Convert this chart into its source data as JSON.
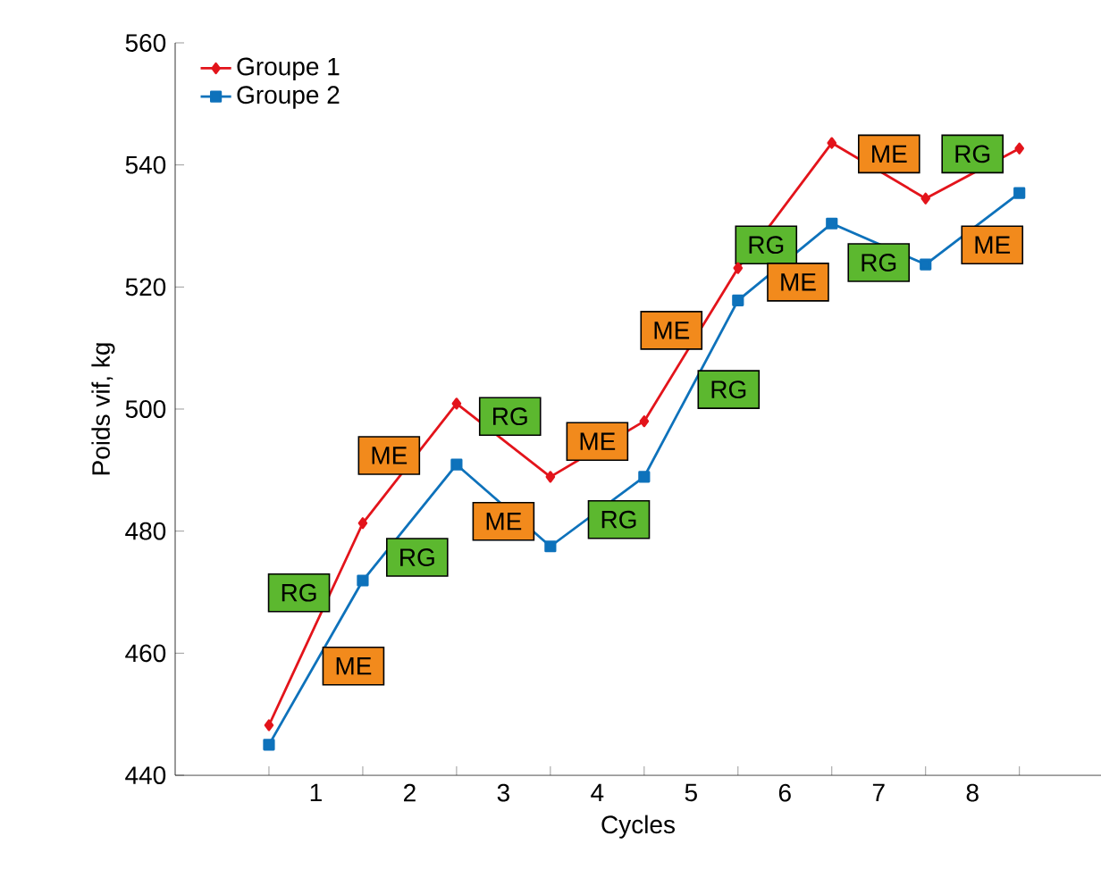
{
  "chart_data": {
    "type": "line",
    "xlabel": "Cycles",
    "ylabel": "Poids vif, kg",
    "x": [
      0,
      1,
      2,
      3,
      4,
      5,
      6,
      7,
      8
    ],
    "xlim": [
      -1,
      8.87
    ],
    "ylim": [
      440,
      560
    ],
    "xticks": [
      {
        "value": 0,
        "label": null
      },
      {
        "value": 0.5,
        "label": "1"
      },
      {
        "value": 1,
        "label": null
      },
      {
        "value": 1.5,
        "label": "2"
      },
      {
        "value": 2,
        "label": null
      },
      {
        "value": 2.5,
        "label": "3"
      },
      {
        "value": 3,
        "label": null
      },
      {
        "value": 3.5,
        "label": "4"
      },
      {
        "value": 4,
        "label": null
      },
      {
        "value": 4.5,
        "label": "5"
      },
      {
        "value": 5,
        "label": null
      },
      {
        "value": 5.5,
        "label": "6"
      },
      {
        "value": 6,
        "label": null
      },
      {
        "value": 6.5,
        "label": "7"
      },
      {
        "value": 7,
        "label": null
      },
      {
        "value": 7.5,
        "label": "8"
      },
      {
        "value": 8,
        "label": null
      }
    ],
    "yticks": [
      440,
      460,
      480,
      500,
      520,
      540,
      560
    ],
    "grid": false,
    "legend": "top left",
    "series": [
      {
        "name": "Groupe 1",
        "color": "#e3141b",
        "marker": "diamond",
        "values": [
          448.2,
          481.3,
          500.9,
          488.9,
          498,
          523.1,
          543.6,
          534.5,
          542.7
        ]
      },
      {
        "name": "Groupe 2",
        "color": "#0e72bb",
        "marker": "square",
        "values": [
          445,
          471.9,
          490.9,
          477.5,
          488.9,
          517.8,
          530.4,
          523.7,
          535.4
        ]
      }
    ],
    "annotations": [
      {
        "text": "RG",
        "x": 0.32,
        "y": 469.9
      },
      {
        "text": "ME",
        "x": 0.9,
        "y": 457.9
      },
      {
        "text": "RG",
        "x": 1.58,
        "y": 475.7
      },
      {
        "text": "ME",
        "x": 1.28,
        "y": 492.4
      },
      {
        "text": "RG",
        "x": 2.57,
        "y": 498.8
      },
      {
        "text": "ME",
        "x": 2.5,
        "y": 481.6
      },
      {
        "text": "RG",
        "x": 3.73,
        "y": 481.9
      },
      {
        "text": "ME",
        "x": 3.5,
        "y": 494.7
      },
      {
        "text": "RG",
        "x": 4.9,
        "y": 503.2
      },
      {
        "text": "ME",
        "x": 4.29,
        "y": 512.9
      },
      {
        "text": "RG",
        "x": 5.3,
        "y": 526.9
      },
      {
        "text": "ME",
        "x": 5.64,
        "y": 520.8
      },
      {
        "text": "RG",
        "x": 6.5,
        "y": 524
      },
      {
        "text": "ME",
        "x": 6.61,
        "y": 541.8
      },
      {
        "text": "RG",
        "x": 7.5,
        "y": 541.8
      },
      {
        "text": "ME",
        "x": 7.71,
        "y": 526.9
      }
    ]
  }
}
